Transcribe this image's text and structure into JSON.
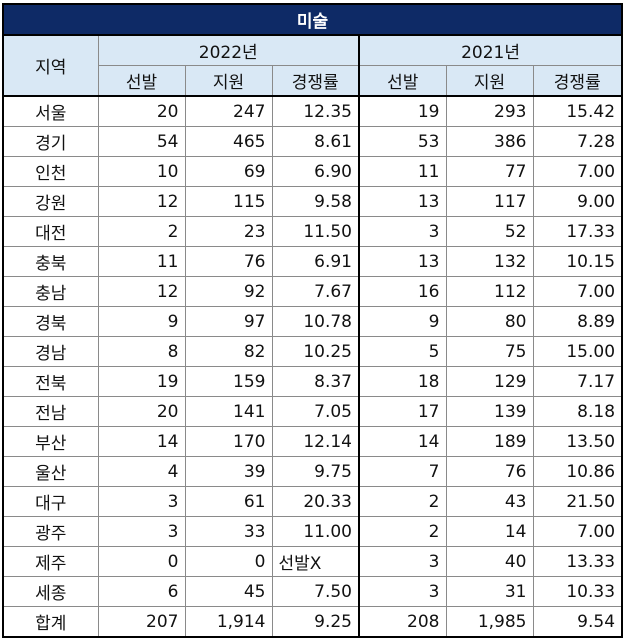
{
  "title": "미술",
  "headers": {
    "region": "지역",
    "year_a": "2022년",
    "year_b": "2021년",
    "cols": [
      "선발",
      "지원",
      "경쟁률",
      "선발",
      "지원",
      "경쟁률"
    ]
  },
  "rows": [
    {
      "region": "서울",
      "a_sel": "20",
      "a_app": "247",
      "a_rate": "12.35",
      "b_sel": "19",
      "b_app": "293",
      "b_rate": "15.42"
    },
    {
      "region": "경기",
      "a_sel": "54",
      "a_app": "465",
      "a_rate": "8.61",
      "b_sel": "53",
      "b_app": "386",
      "b_rate": "7.28"
    },
    {
      "region": "인천",
      "a_sel": "10",
      "a_app": "69",
      "a_rate": "6.90",
      "b_sel": "11",
      "b_app": "77",
      "b_rate": "7.00"
    },
    {
      "region": "강원",
      "a_sel": "12",
      "a_app": "115",
      "a_rate": "9.58",
      "b_sel": "13",
      "b_app": "117",
      "b_rate": "9.00"
    },
    {
      "region": "대전",
      "a_sel": "2",
      "a_app": "23",
      "a_rate": "11.50",
      "b_sel": "3",
      "b_app": "52",
      "b_rate": "17.33"
    },
    {
      "region": "충북",
      "a_sel": "11",
      "a_app": "76",
      "a_rate": "6.91",
      "b_sel": "13",
      "b_app": "132",
      "b_rate": "10.15"
    },
    {
      "region": "충남",
      "a_sel": "12",
      "a_app": "92",
      "a_rate": "7.67",
      "b_sel": "16",
      "b_app": "112",
      "b_rate": "7.00"
    },
    {
      "region": "경북",
      "a_sel": "9",
      "a_app": "97",
      "a_rate": "10.78",
      "b_sel": "9",
      "b_app": "80",
      "b_rate": "8.89"
    },
    {
      "region": "경남",
      "a_sel": "8",
      "a_app": "82",
      "a_rate": "10.25",
      "b_sel": "5",
      "b_app": "75",
      "b_rate": "15.00"
    },
    {
      "region": "전북",
      "a_sel": "19",
      "a_app": "159",
      "a_rate": "8.37",
      "b_sel": "18",
      "b_app": "129",
      "b_rate": "7.17"
    },
    {
      "region": "전남",
      "a_sel": "20",
      "a_app": "141",
      "a_rate": "7.05",
      "b_sel": "17",
      "b_app": "139",
      "b_rate": "8.18"
    },
    {
      "region": "부산",
      "a_sel": "14",
      "a_app": "170",
      "a_rate": "12.14",
      "b_sel": "14",
      "b_app": "189",
      "b_rate": "13.50"
    },
    {
      "region": "울산",
      "a_sel": "4",
      "a_app": "39",
      "a_rate": "9.75",
      "b_sel": "7",
      "b_app": "76",
      "b_rate": "10.86"
    },
    {
      "region": "대구",
      "a_sel": "3",
      "a_app": "61",
      "a_rate": "20.33",
      "b_sel": "2",
      "b_app": "43",
      "b_rate": "21.50"
    },
    {
      "region": "광주",
      "a_sel": "3",
      "a_app": "33",
      "a_rate": "11.00",
      "b_sel": "2",
      "b_app": "14",
      "b_rate": "7.00"
    },
    {
      "region": "제주",
      "a_sel": "0",
      "a_app": "0",
      "a_rate": "선발X",
      "b_sel": "3",
      "b_app": "40",
      "b_rate": "13.33"
    },
    {
      "region": "세종",
      "a_sel": "6",
      "a_app": "45",
      "a_rate": "7.50",
      "b_sel": "3",
      "b_app": "31",
      "b_rate": "10.33"
    }
  ],
  "total": {
    "region": "합계",
    "a_sel": "207",
    "a_app": "1,914",
    "a_rate": "9.25",
    "b_sel": "208",
    "b_app": "1,985",
    "b_rate": "9.54"
  },
  "colors": {
    "title_bg": "#0e2a66",
    "header_bg": "#d9e8f5"
  }
}
